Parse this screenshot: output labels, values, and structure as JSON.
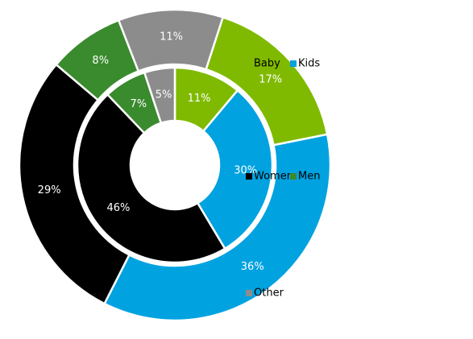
{
  "chart_data": {
    "type": "donut",
    "categories": [
      "Baby",
      "Kids",
      "Women",
      "Men",
      "Other"
    ],
    "colors": [
      "#7fba00",
      "#00a2e0",
      "#000000",
      "#3a8a2e",
      "#8c8c8c"
    ],
    "series": [
      {
        "values": [
          11,
          30,
          46,
          7,
          5
        ],
        "value_labels": [
          "11%",
          "30%",
          "46%",
          "7%",
          "5%"
        ]
      },
      {
        "values": [
          17,
          36,
          29,
          8,
          11
        ],
        "value_labels": [
          "17%",
          "36%",
          "29%",
          "8%",
          "11%"
        ]
      }
    ],
    "legend": "right"
  }
}
